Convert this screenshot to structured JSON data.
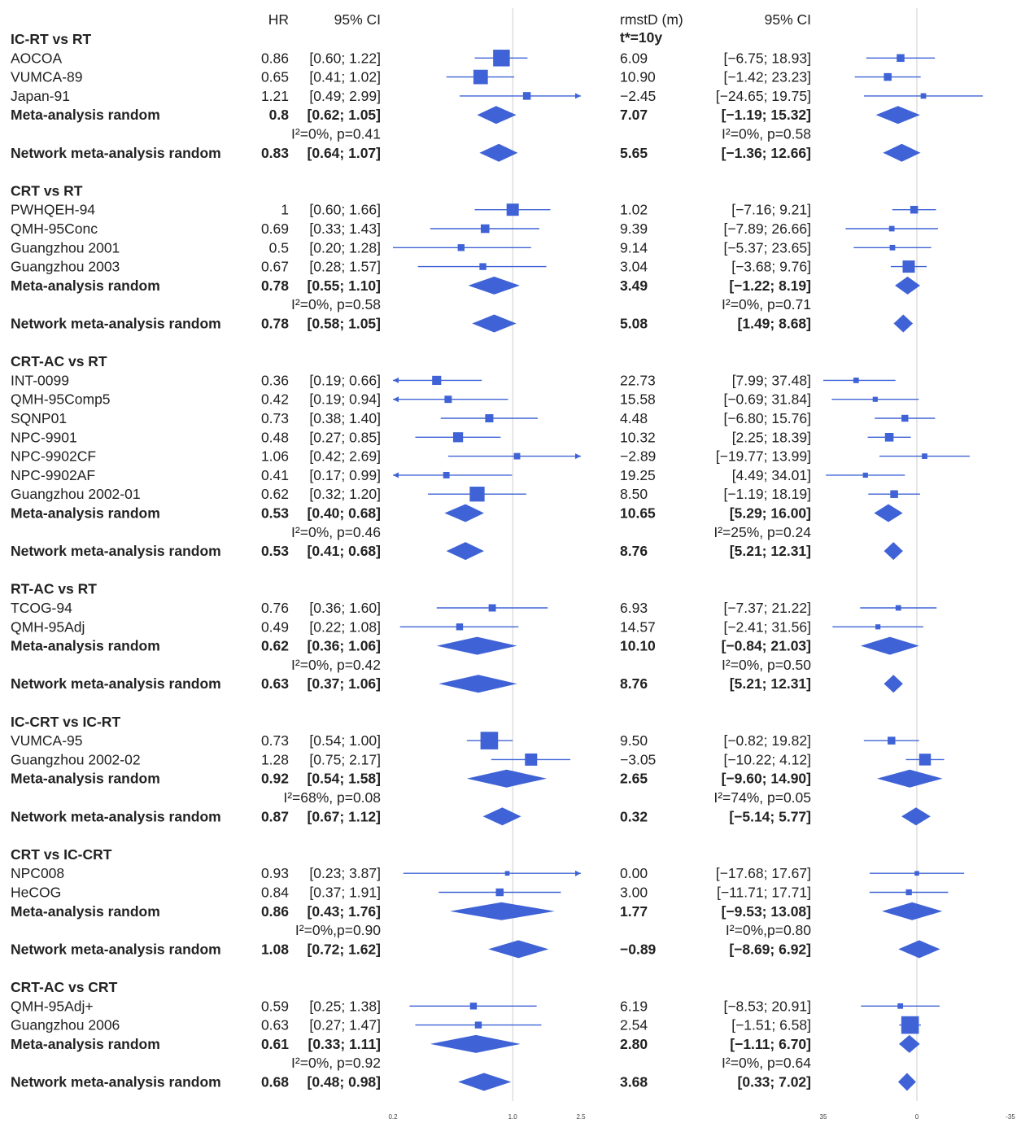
{
  "chart_data": {
    "type": "forest",
    "title": "",
    "colors": {
      "marker": "#3f63d6",
      "text": "#222222",
      "refline": "#cccccc"
    },
    "headers": {
      "hr": "HR",
      "hr_ci": "95% CI",
      "rmst": "rmstD (m)",
      "rmst_sub": "t*=10y",
      "rmst_ci": "95% CI"
    },
    "hr_axis": {
      "scale": "log",
      "ticks": [
        "0.2",
        "1.0",
        "2.5"
      ],
      "range": [
        0.2,
        2.5
      ],
      "reference": 1.0
    },
    "rmst_axis": {
      "scale": "linear",
      "reversed": true,
      "ticks": [
        "35",
        "0",
        "-35"
      ],
      "range": [
        35,
        -35
      ],
      "reference": 0
    },
    "groups": [
      {
        "title": "IC-RT vs RT",
        "studies": [
          {
            "label": "AOCOA",
            "hr": 0.86,
            "hr_ci_text": "[0.60; 1.22]",
            "hr_lo": 0.6,
            "hr_hi": 1.22,
            "rmst": 6.09,
            "rmst_text": "6.09",
            "rmst_ci_text": "[−6.75; 18.93]",
            "rmst_lo": -6.75,
            "rmst_hi": 18.93,
            "hr_w": 3.0,
            "rmst_w": 1.0
          },
          {
            "label": "VUMCA-89",
            "hr": 0.65,
            "hr_ci_text": "[0.41; 1.02]",
            "hr_lo": 0.41,
            "hr_hi": 1.02,
            "rmst": 10.9,
            "rmst_text": "10.90",
            "rmst_ci_text": "[−1.42; 23.23]",
            "rmst_lo": -1.42,
            "rmst_hi": 23.23,
            "hr_w": 2.5,
            "rmst_w": 1.0
          },
          {
            "label": "Japan-91",
            "hr": 1.21,
            "hr_ci_text": "[0.49; 2.99]",
            "hr_lo": 0.49,
            "hr_hi": 2.99,
            "rmst": -2.45,
            "rmst_text": "−2.45",
            "rmst_ci_text": "[−24.65; 19.75]",
            "rmst_lo": -24.65,
            "rmst_hi": 19.75,
            "hr_w": 1.0,
            "rmst_w": 0.5
          }
        ],
        "meta": {
          "label": "Meta-analysis random",
          "hr": 0.8,
          "hr_ci_text": "[0.62; 1.05]",
          "hr_lo": 0.62,
          "hr_hi": 1.05,
          "rmst": 7.07,
          "rmst_text": "7.07",
          "rmst_ci_text": "[−1.19; 15.32]",
          "rmst_lo": -1.19,
          "rmst_hi": 15.32
        },
        "het_hr": "I²=0%, p=0.41",
        "het_rmst": "I²=0%, p=0.58",
        "network": {
          "label": "Network meta-analysis random",
          "hr": 0.83,
          "hr_ci_text": "[0.64; 1.07]",
          "hr_lo": 0.64,
          "hr_hi": 1.07,
          "rmst": 5.65,
          "rmst_text": "5.65",
          "rmst_ci_text": "[−1.36; 12.66]",
          "rmst_lo": -1.36,
          "rmst_hi": 12.66
        }
      },
      {
        "title": "CRT vs RT",
        "studies": [
          {
            "label": "PWHQEH-94",
            "hr": 1.0,
            "hr_ci_text": "[0.60; 1.66]",
            "hr_lo": 0.6,
            "hr_hi": 1.66,
            "rmst": 1.02,
            "rmst_text": "1.02",
            "rmst_ci_text": "[−7.16; 9.21]",
            "rmst_lo": -7.16,
            "rmst_hi": 9.21,
            "hr_w": 2.0,
            "rmst_w": 1.0
          },
          {
            "label": "QMH-95Conc",
            "hr": 0.69,
            "hr_ci_text": "[0.33; 1.43]",
            "hr_lo": 0.33,
            "hr_hi": 1.43,
            "rmst": 9.39,
            "rmst_text": "9.39",
            "rmst_ci_text": "[−7.89; 26.66]",
            "rmst_lo": -7.89,
            "rmst_hi": 26.66,
            "hr_w": 1.2,
            "rmst_w": 0.5
          },
          {
            "label": "Guangzhou 2001",
            "hr": 0.5,
            "hr_ci_text": "[0.20; 1.28]",
            "hr_lo": 0.2,
            "hr_hi": 1.28,
            "rmst": 9.14,
            "rmst_text": "9.14",
            "rmst_ci_text": "[−5.37; 23.65]",
            "rmst_lo": -5.37,
            "rmst_hi": 23.65,
            "hr_w": 0.8,
            "rmst_w": 0.5
          },
          {
            "label": "Guangzhou 2003",
            "hr": 0.67,
            "hr_ci_text": "[0.28; 1.57]",
            "hr_lo": 0.28,
            "hr_hi": 1.57,
            "rmst": 3.04,
            "rmst_text": "3.04",
            "rmst_ci_text": "[−3.68; 9.76]",
            "rmst_lo": -3.68,
            "rmst_hi": 9.76,
            "hr_w": 0.8,
            "rmst_w": 2.0
          }
        ],
        "meta": {
          "label": "Meta-analysis random",
          "hr": 0.78,
          "hr_ci_text": "[0.55; 1.10]",
          "hr_lo": 0.55,
          "hr_hi": 1.1,
          "rmst": 3.49,
          "rmst_text": "3.49",
          "rmst_ci_text": "[−1.22; 8.19]",
          "rmst_lo": -1.22,
          "rmst_hi": 8.19
        },
        "het_hr": "I²=0%, p=0.58",
        "het_rmst": "I²=0%, p=0.71",
        "network": {
          "label": "Network meta-analysis random",
          "hr": 0.78,
          "hr_ci_text": "[0.58; 1.05]",
          "hr_lo": 0.58,
          "hr_hi": 1.05,
          "rmst": 5.08,
          "rmst_text": "5.08",
          "rmst_ci_text": "[1.49; 8.68]",
          "rmst_lo": 1.49,
          "rmst_hi": 8.68
        }
      },
      {
        "title": "CRT-AC vs RT",
        "studies": [
          {
            "label": "INT-0099",
            "hr": 0.36,
            "hr_ci_text": "[0.19; 0.66]",
            "hr_lo": 0.19,
            "hr_hi": 0.66,
            "rmst": 22.73,
            "rmst_text": "22.73",
            "rmst_ci_text": "[7.99; 37.48]",
            "rmst_lo": 7.99,
            "rmst_hi": 37.48,
            "hr_w": 1.3,
            "rmst_w": 0.5
          },
          {
            "label": "QMH-95Comp5",
            "hr": 0.42,
            "hr_ci_text": "[0.19; 0.94]",
            "hr_lo": 0.19,
            "hr_hi": 0.94,
            "rmst": 15.58,
            "rmst_text": "15.58",
            "rmst_ci_text": "[−0.69; 31.84]",
            "rmst_lo": -0.69,
            "rmst_hi": 31.84,
            "hr_w": 0.9,
            "rmst_w": 0.4
          },
          {
            "label": "SQNP01",
            "hr": 0.73,
            "hr_ci_text": "[0.38; 1.40]",
            "hr_lo": 0.38,
            "hr_hi": 1.4,
            "rmst": 4.48,
            "rmst_text": "4.48",
            "rmst_ci_text": "[−6.80; 15.76]",
            "rmst_lo": -6.8,
            "rmst_hi": 15.76,
            "hr_w": 1.1,
            "rmst_w": 0.8
          },
          {
            "label": "NPC-9901",
            "hr": 0.48,
            "hr_ci_text": "[0.27; 0.85]",
            "hr_lo": 0.27,
            "hr_hi": 0.85,
            "rmst": 10.32,
            "rmst_text": "10.32",
            "rmst_ci_text": "[2.25; 18.39]",
            "rmst_lo": 2.25,
            "rmst_hi": 18.39,
            "hr_w": 1.5,
            "rmst_w": 1.2
          },
          {
            "label": "NPC-9902CF",
            "hr": 1.06,
            "hr_ci_text": "[0.42; 2.69]",
            "hr_lo": 0.42,
            "hr_hi": 2.69,
            "rmst": -2.89,
            "rmst_text": "−2.89",
            "rmst_ci_text": "[−19.77; 13.99]",
            "rmst_lo": -19.77,
            "rmst_hi": 13.99,
            "hr_w": 0.7,
            "rmst_w": 0.5
          },
          {
            "label": "NPC-9902AF",
            "hr": 0.41,
            "hr_ci_text": "[0.17; 0.99]",
            "hr_lo": 0.17,
            "hr_hi": 0.99,
            "rmst": 19.25,
            "rmst_text": "19.25",
            "rmst_ci_text": "[4.49; 34.01]",
            "rmst_lo": 4.49,
            "rmst_hi": 34.01,
            "hr_w": 0.7,
            "rmst_w": 0.4
          },
          {
            "label": "Guangzhou 2002-01",
            "hr": 0.62,
            "hr_ci_text": "[0.32; 1.20]",
            "hr_lo": 0.32,
            "hr_hi": 1.2,
            "rmst": 8.5,
            "rmst_text": "8.50",
            "rmst_ci_text": "[−1.19; 18.19]",
            "rmst_lo": -1.19,
            "rmst_hi": 18.19,
            "hr_w": 2.6,
            "rmst_w": 1.0
          }
        ],
        "meta": {
          "label": "Meta-analysis random",
          "hr": 0.53,
          "hr_ci_text": "[0.40; 0.68]",
          "hr_lo": 0.4,
          "hr_hi": 0.68,
          "rmst": 10.65,
          "rmst_text": "10.65",
          "rmst_ci_text": "[5.29; 16.00]",
          "rmst_lo": 5.29,
          "rmst_hi": 16.0
        },
        "het_hr": "I²=0%, p=0.46",
        "het_rmst": "I²=25%, p=0.24",
        "network": {
          "label": "Network meta-analysis random",
          "hr": 0.53,
          "hr_ci_text": "[0.41; 0.68]",
          "hr_lo": 0.41,
          "hr_hi": 0.68,
          "rmst": 8.76,
          "rmst_text": "8.76",
          "rmst_ci_text": "[5.21; 12.31]",
          "rmst_lo": 5.21,
          "rmst_hi": 12.31
        }
      },
      {
        "title": "RT-AC vs RT",
        "studies": [
          {
            "label": "TCOG-94",
            "hr": 0.76,
            "hr_ci_text": "[0.36; 1.60]",
            "hr_lo": 0.36,
            "hr_hi": 1.6,
            "rmst": 6.93,
            "rmst_text": "6.93",
            "rmst_ci_text": "[−7.37; 21.22]",
            "rmst_lo": -7.37,
            "rmst_hi": 21.22,
            "hr_w": 0.9,
            "rmst_w": 0.5
          },
          {
            "label": "QMH-95Adj",
            "hr": 0.49,
            "hr_ci_text": "[0.22; 1.08]",
            "hr_lo": 0.22,
            "hr_hi": 1.08,
            "rmst": 14.57,
            "rmst_text": "14.57",
            "rmst_ci_text": "[−2.41; 31.56]",
            "rmst_lo": -2.41,
            "rmst_hi": 31.56,
            "hr_w": 0.8,
            "rmst_w": 0.4
          }
        ],
        "meta": {
          "label": "Meta-analysis random",
          "hr": 0.62,
          "hr_ci_text": "[0.36; 1.06]",
          "hr_lo": 0.36,
          "hr_hi": 1.06,
          "rmst": 10.1,
          "rmst_text": "10.10",
          "rmst_ci_text": "[−0.84; 21.03]",
          "rmst_lo": -0.84,
          "rmst_hi": 21.03
        },
        "het_hr": "I²=0%, p=0.42",
        "het_rmst": "I²=0%, p=0.50",
        "network": {
          "label": "Network meta-analysis random",
          "hr": 0.63,
          "hr_ci_text": "[0.37; 1.06]",
          "hr_lo": 0.37,
          "hr_hi": 1.06,
          "rmst": 8.76,
          "rmst_text": "8.76",
          "rmst_ci_text": "[5.21; 12.31]",
          "rmst_lo": 5.21,
          "rmst_hi": 12.31
        }
      },
      {
        "title": "IC-CRT vs IC-RT",
        "studies": [
          {
            "label": "VUMCA-95",
            "hr": 0.73,
            "hr_ci_text": "[0.54; 1.00]",
            "hr_lo": 0.54,
            "hr_hi": 1.0,
            "rmst": 9.5,
            "rmst_text": "9.50",
            "rmst_ci_text": "[−0.82; 19.82]",
            "rmst_lo": -0.82,
            "rmst_hi": 19.82,
            "hr_w": 3.2,
            "rmst_w": 1.0
          },
          {
            "label": "Guangzhou 2002-02",
            "hr": 1.28,
            "hr_ci_text": "[0.75; 2.17]",
            "hr_lo": 0.75,
            "hr_hi": 2.17,
            "rmst": -3.05,
            "rmst_text": "−3.05",
            "rmst_ci_text": "[−10.22; 4.12]",
            "rmst_lo": -10.22,
            "rmst_hi": 4.12,
            "hr_w": 2.0,
            "rmst_w": 1.9
          }
        ],
        "meta": {
          "label": "Meta-analysis random",
          "hr": 0.92,
          "hr_ci_text": "[0.54; 1.58]",
          "hr_lo": 0.54,
          "hr_hi": 1.58,
          "rmst": 2.65,
          "rmst_text": "2.65",
          "rmst_ci_text": "[−9.60; 14.90]",
          "rmst_lo": -9.6,
          "rmst_hi": 14.9
        },
        "het_hr": "I²=68%, p=0.08",
        "het_rmst": "I²=74%, p=0.05",
        "network": {
          "label": "Network meta-analysis random",
          "hr": 0.87,
          "hr_ci_text": "[0.67; 1.12]",
          "hr_lo": 0.67,
          "hr_hi": 1.12,
          "rmst": 0.32,
          "rmst_text": "0.32",
          "rmst_ci_text": "[−5.14; 5.77]",
          "rmst_lo": -5.14,
          "rmst_hi": 5.77
        }
      },
      {
        "title": "CRT vs IC-CRT",
        "studies": [
          {
            "label": "NPC008",
            "hr": 0.93,
            "hr_ci_text": "[0.23; 3.87]",
            "hr_lo": 0.23,
            "hr_hi": 3.87,
            "rmst": 0.0,
            "rmst_text": "0.00",
            "rmst_ci_text": "[−17.68; 17.67]",
            "rmst_lo": -17.68,
            "rmst_hi": 17.67,
            "hr_w": 0.3,
            "rmst_w": 0.3
          },
          {
            "label": "HeCOG",
            "hr": 0.84,
            "hr_ci_text": "[0.37; 1.91]",
            "hr_lo": 0.37,
            "hr_hi": 1.91,
            "rmst": 3.0,
            "rmst_text": "3.00",
            "rmst_ci_text": "[−11.71; 17.71]",
            "rmst_lo": -11.71,
            "rmst_hi": 17.71,
            "hr_w": 1.0,
            "rmst_w": 0.6
          }
        ],
        "meta": {
          "label": "Meta-analysis random",
          "hr": 0.86,
          "hr_ci_text": "[0.43; 1.76]",
          "hr_lo": 0.43,
          "hr_hi": 1.76,
          "rmst": 1.77,
          "rmst_text": "1.77",
          "rmst_ci_text": "[−9.53; 13.08]",
          "rmst_lo": -9.53,
          "rmst_hi": 13.08
        },
        "het_hr": "I²=0%,p=0.90",
        "het_rmst": "I²=0%,p=0.80",
        "network": {
          "label": "Network meta-analysis random",
          "hr": 1.08,
          "hr_ci_text": "[0.72; 1.62]",
          "hr_lo": 0.72,
          "hr_hi": 1.62,
          "rmst": -0.89,
          "rmst_text": "−0.89",
          "rmst_ci_text": "[−8.69; 6.92]",
          "rmst_lo": -8.69,
          "rmst_hi": 6.92
        }
      },
      {
        "title": "CRT-AC vs CRT",
        "studies": [
          {
            "label": "QMH-95Adj+",
            "hr": 0.59,
            "hr_ci_text": "[0.25; 1.38]",
            "hr_lo": 0.25,
            "hr_hi": 1.38,
            "rmst": 6.19,
            "rmst_text": "6.19",
            "rmst_ci_text": "[−8.53; 20.91]",
            "rmst_lo": -8.53,
            "rmst_hi": 20.91,
            "hr_w": 0.8,
            "rmst_w": 0.5
          },
          {
            "label": "Guangzhou 2006",
            "hr": 0.63,
            "hr_ci_text": "[0.27; 1.47]",
            "hr_lo": 0.27,
            "hr_hi": 1.47,
            "rmst": 2.54,
            "rmst_text": "2.54",
            "rmst_ci_text": "[−1.51; 6.58]",
            "rmst_lo": -1.51,
            "rmst_hi": 6.58,
            "hr_w": 0.8,
            "rmst_w": 3.2
          }
        ],
        "meta": {
          "label": "Meta-analysis random",
          "hr": 0.61,
          "hr_ci_text": "[0.33; 1.11]",
          "hr_lo": 0.33,
          "hr_hi": 1.11,
          "rmst": 2.8,
          "rmst_text": "2.80",
          "rmst_ci_text": "[−1.11; 6.70]",
          "rmst_lo": -1.11,
          "rmst_hi": 6.7
        },
        "het_hr": "I²=0%, p=0.92",
        "het_rmst": "I²=0%, p=0.64",
        "network": {
          "label": "Network meta-analysis random",
          "hr": 0.68,
          "hr_ci_text": "[0.48; 0.98]",
          "hr_lo": 0.48,
          "hr_hi": 0.98,
          "rmst": 3.68,
          "rmst_text": "3.68",
          "rmst_ci_text": "[0.33; 7.02]",
          "rmst_lo": 0.33,
          "rmst_hi": 7.02
        }
      }
    ]
  }
}
